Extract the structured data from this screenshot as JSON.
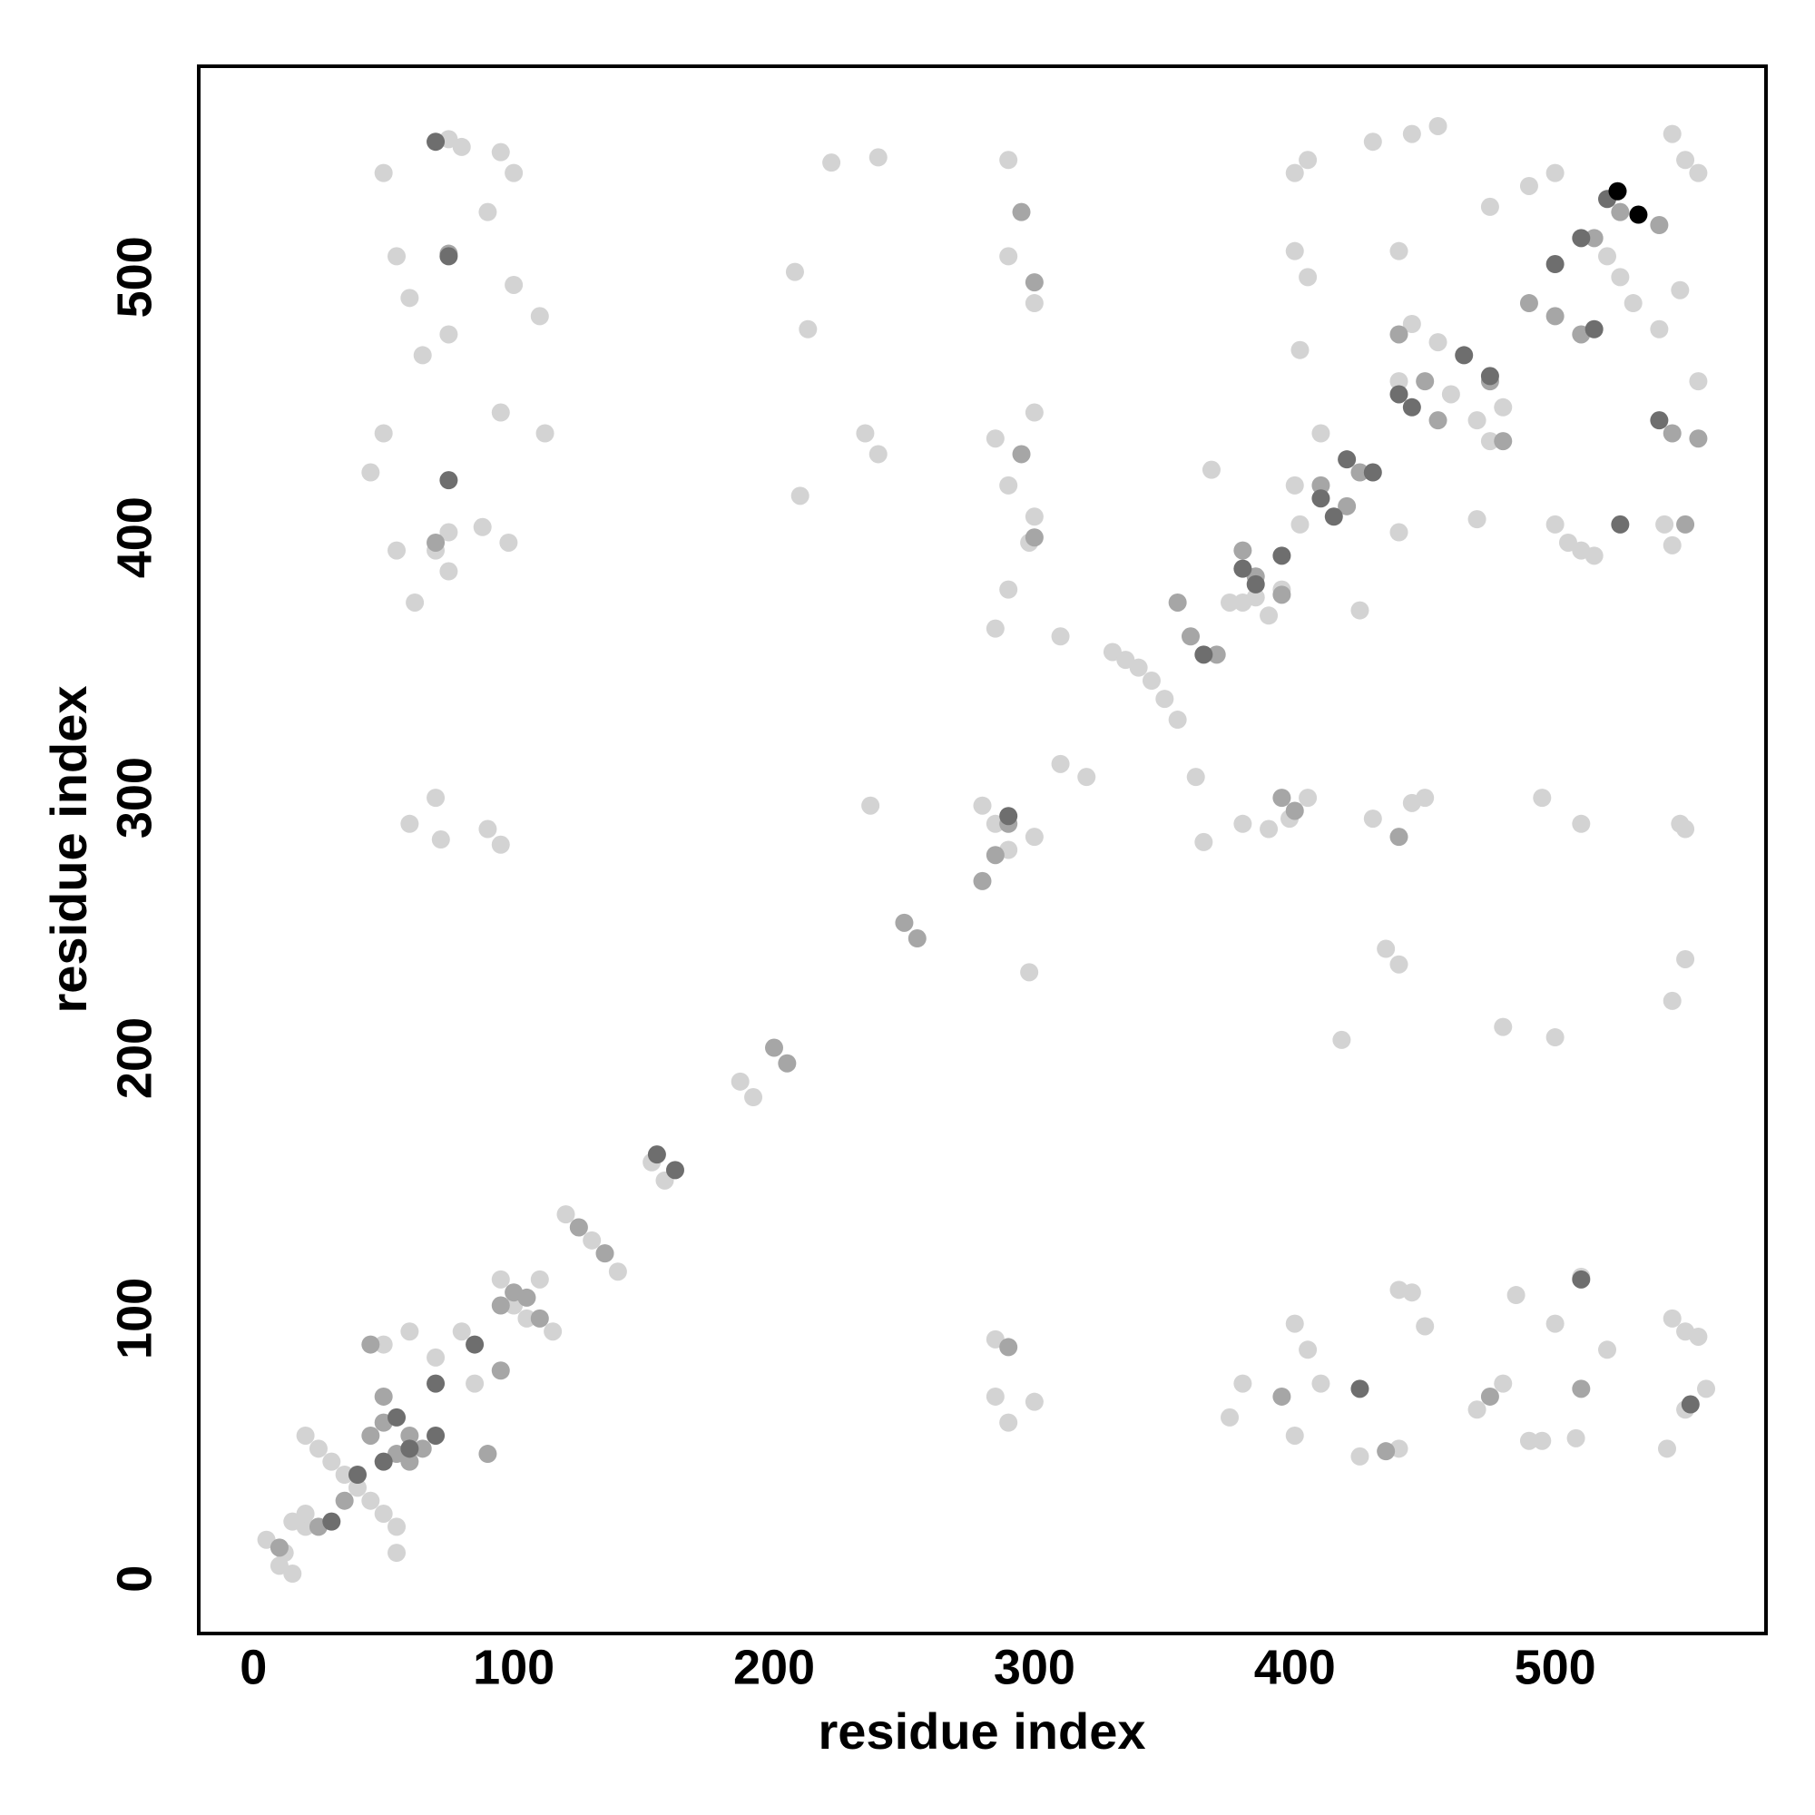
{
  "chart_data": {
    "type": "scatter",
    "x_label": "residue index",
    "y_label": "residue index",
    "xlim": [
      -21,
      581
    ],
    "ylim": [
      -21,
      581
    ],
    "xticks": [
      0,
      100,
      200,
      300,
      400,
      500
    ],
    "yticks": [
      0,
      100,
      200,
      300,
      400,
      500
    ],
    "grid": false,
    "series": [
      {
        "color": "#d3d3d3",
        "x": [
          5,
          10,
          15,
          20,
          25,
          30,
          35,
          40,
          45,
          50,
          55,
          20,
          12,
          55,
          50,
          60,
          70,
          80,
          85,
          95,
          100,
          110,
          105,
          115,
          120,
          125,
          130,
          135,
          140,
          153,
          158,
          187,
          192,
          237,
          210,
          222,
          240,
          213,
          208,
          235,
          240,
          285,
          290,
          290,
          300,
          300,
          285,
          290,
          300,
          290,
          298,
          310,
          330,
          335,
          340,
          345,
          350,
          355,
          310,
          320,
          280,
          285,
          290,
          300,
          298,
          362,
          365,
          368,
          375,
          380,
          385,
          390,
          395,
          380,
          390,
          398,
          405,
          400,
          402,
          410,
          400,
          405,
          400,
          405,
          402,
          430,
          445,
          455,
          440,
          440,
          445,
          455,
          460,
          470,
          480,
          475,
          470,
          475,
          490,
          500,
          520,
          525,
          530,
          540,
          545,
          550,
          555,
          555,
          548,
          542,
          545,
          500,
          505,
          510,
          515,
          425,
          440,
          430,
          445,
          450,
          440,
          435,
          418,
          480,
          500,
          550,
          545,
          285,
          290,
          285,
          300,
          375,
          380,
          400,
          405,
          410,
          400,
          425,
          440,
          445,
          440,
          450,
          470,
          480,
          485,
          490,
          495,
          500,
          508,
          510,
          520,
          545,
          550,
          555,
          543,
          550,
          558,
          495,
          510,
          550,
          548,
          45,
          50,
          55,
          50,
          55,
          60,
          62,
          70,
          75,
          75,
          90,
          95,
          100,
          95,
          100,
          110,
          112,
          65,
          75,
          60,
          70,
          72,
          90,
          95,
          98,
          88,
          20,
          15,
          80,
          75
        ],
        "y": [
          15,
          5,
          2,
          55,
          50,
          45,
          40,
          35,
          30,
          25,
          20,
          20,
          10,
          10,
          90,
          95,
          85,
          95,
          75,
          115,
          105,
          115,
          100,
          95,
          140,
          135,
          130,
          125,
          118,
          160,
          153,
          191,
          185,
          297,
          416,
          544,
          546,
          480,
          502,
          440,
          432,
          365,
          545,
          508,
          490,
          448,
          438,
          420,
          408,
          380,
          398,
          362,
          356,
          353,
          350,
          345,
          338,
          330,
          313,
          308,
          297,
          290,
          280,
          285,
          233,
          308,
          283,
          426,
          375,
          375,
          377,
          370,
          380,
          290,
          288,
          292,
          300,
          420,
          405,
          440,
          540,
          545,
          510,
          500,
          472,
          552,
          555,
          558,
          510,
          460,
          482,
          475,
          455,
          445,
          450,
          437,
          407,
          527,
          535,
          540,
          508,
          500,
          490,
          480,
          555,
          545,
          540,
          460,
          495,
          405,
          397,
          405,
          398,
          395,
          393,
          372,
          402,
          292,
          298,
          300,
          236,
          242,
          207,
          212,
          208,
          238,
          222,
          92,
          60,
          70,
          68,
          62,
          75,
          98,
          88,
          75,
          55,
          47,
          50,
          110,
          111,
          97,
          65,
          75,
          109,
          53,
          53,
          98,
          54,
          116,
          88,
          100,
          95,
          93,
          50,
          65,
          73,
          300,
          290,
          288,
          290,
          425,
          440,
          395,
          540,
          508,
          492,
          375,
          395,
          387,
          402,
          525,
          548,
          540,
          448,
          497,
          485,
          440,
          470,
          478,
          290,
          300,
          284,
          288,
          282,
          398,
          404,
          25,
          22,
          550,
          553
        ]
      },
      {
        "color": "#a6a6a6",
        "x": [
          10,
          25,
          35,
          45,
          50,
          55,
          60,
          65,
          50,
          60,
          90,
          95,
          95,
          100,
          110,
          105,
          125,
          135,
          205,
          200,
          250,
          255,
          280,
          285,
          290,
          295,
          300,
          295,
          355,
          360,
          370,
          380,
          385,
          395,
          410,
          420,
          425,
          440,
          450,
          455,
          480,
          475,
          490,
          500,
          510,
          515,
          525,
          540,
          545,
          550,
          555,
          395,
          435,
          395,
          400,
          440,
          510,
          75,
          70,
          475,
          290,
          300,
          45
        ],
        "y": [
          12,
          20,
          30,
          55,
          60,
          48,
          45,
          50,
          70,
          55,
          48,
          80,
          105,
          110,
          100,
          108,
          135,
          125,
          198,
          204,
          252,
          246,
          268,
          278,
          290,
          432,
          498,
          525,
          375,
          362,
          355,
          395,
          385,
          378,
          420,
          412,
          425,
          478,
          460,
          445,
          437,
          460,
          490,
          485,
          478,
          515,
          525,
          520,
          440,
          405,
          438,
          70,
          49,
          300,
          295,
          285,
          73,
          509,
          398,
          70,
          89,
          400,
          90
        ]
      },
      {
        "color": "#6e6e6e",
        "x": [
          70,
          75,
          75,
          395,
          385,
          410,
          420,
          430,
          415,
          440,
          445,
          465,
          475,
          500,
          510,
          520,
          515,
          425,
          510,
          552,
          540,
          525,
          290,
          50,
          55,
          60,
          70,
          70,
          40,
          85,
          30,
          155,
          162,
          365,
          380
        ],
        "y": [
          552,
          508,
          422,
          393,
          382,
          415,
          430,
          425,
          408,
          455,
          450,
          470,
          462,
          505,
          515,
          530,
          480,
          73,
          115,
          67,
          445,
          405,
          293,
          45,
          62,
          50,
          55,
          75,
          40,
          90,
          22,
          163,
          157,
          355,
          388
        ]
      },
      {
        "color": "#000000",
        "x": [
          524,
          532
        ],
        "y": [
          533,
          524
        ]
      }
    ]
  }
}
